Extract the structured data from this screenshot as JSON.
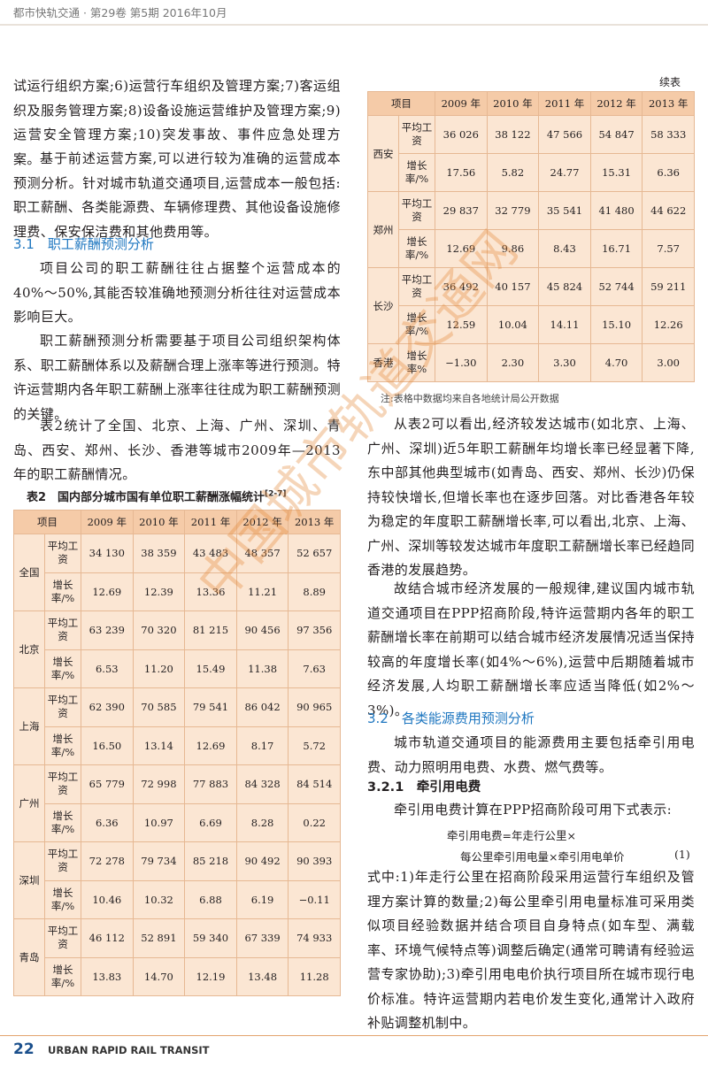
{
  "header": {
    "journal": "都市快轨交通 · 第29卷 第5期 2016年10月"
  },
  "left": {
    "p1": "试运行组织方案;6)运营行车组织及管理方案;7)客运组织及服务管理方案;8)设备设施运营维护及管理方案;9)运营安全管理方案;10)突发事故、事件应急处理方案。",
    "p2": "基于前述运营方案,可以进行较为准确的运营成本预测分析。针对城市轨道交通项目,运营成本一般包括:职工薪酬、各类能源费、车辆修理费、其他设备设施修理费、保安保洁费和其他费用等。",
    "h31": "3.1　职工薪酬预测分析",
    "p3": "项目公司的职工薪酬往往占据整个运营成本的40%～50%,其能否较准确地预测分析往往对运营成本影响巨大。",
    "p4": "职工薪酬预测分析需要基于项目公司组织架构体系、职工薪酬体系以及薪酬合理上涨率等进行预测。特许运营期内各年职工薪酬上涨率往往成为职工薪酬预测的关键。",
    "p5": "表2统计了全国、北京、上海、广州、深圳、青岛、西安、郑州、长沙、香港等城市2009年—2013年的职工薪酬情况。"
  },
  "table2": {
    "title": "表2　国内部分城市国有单位职工薪酬涨幅统计",
    "ref": "[2-7]",
    "columns": [
      "项目",
      "2009 年",
      "2010 年",
      "2011 年",
      "2012 年",
      "2013 年"
    ],
    "groups": [
      {
        "city": "全国",
        "rows": [
          {
            "item": "平均工资",
            "values": [
              "34 130",
              "38 359",
              "43 483",
              "48 357",
              "52 657"
            ]
          },
          {
            "item": "增长率/%",
            "values": [
              "12.69",
              "12.39",
              "13.36",
              "11.21",
              "8.89"
            ]
          }
        ]
      },
      {
        "city": "北京",
        "rows": [
          {
            "item": "平均工资",
            "values": [
              "63 239",
              "70 320",
              "81 215",
              "90 456",
              "97 356"
            ]
          },
          {
            "item": "增长率/%",
            "values": [
              "6.53",
              "11.20",
              "15.49",
              "11.38",
              "7.63"
            ]
          }
        ]
      },
      {
        "city": "上海",
        "rows": [
          {
            "item": "平均工资",
            "values": [
              "62 390",
              "70 585",
              "79 541",
              "86 042",
              "90 965"
            ]
          },
          {
            "item": "增长率/%",
            "values": [
              "16.50",
              "13.14",
              "12.69",
              "8.17",
              "5.72"
            ]
          }
        ]
      },
      {
        "city": "广州",
        "rows": [
          {
            "item": "平均工资",
            "values": [
              "65 779",
              "72 998",
              "77 883",
              "84 328",
              "84 514"
            ]
          },
          {
            "item": "增长率/%",
            "values": [
              "6.36",
              "10.97",
              "6.69",
              "8.28",
              "0.22"
            ]
          }
        ]
      },
      {
        "city": "深圳",
        "rows": [
          {
            "item": "平均工资",
            "values": [
              "72 278",
              "79 734",
              "85 218",
              "90 492",
              "90 393"
            ]
          },
          {
            "item": "增长率/%",
            "values": [
              "10.46",
              "10.32",
              "6.88",
              "6.19",
              "−0.11"
            ]
          }
        ]
      },
      {
        "city": "青岛",
        "rows": [
          {
            "item": "平均工资",
            "values": [
              "46 112",
              "52 891",
              "59 340",
              "67 339",
              "74 933"
            ]
          },
          {
            "item": "增长率/%",
            "values": [
              "13.83",
              "14.70",
              "12.19",
              "13.48",
              "11.28"
            ]
          }
        ]
      }
    ]
  },
  "table2_cont": {
    "label": "续表",
    "columns": [
      "项目",
      "2009 年",
      "2010 年",
      "2011 年",
      "2012 年",
      "2013 年"
    ],
    "groups": [
      {
        "city": "西安",
        "rows": [
          {
            "item": "平均工资",
            "values": [
              "36 026",
              "38 122",
              "47 566",
              "54 847",
              "58 333"
            ]
          },
          {
            "item": "增长率/%",
            "values": [
              "17.56",
              "5.82",
              "24.77",
              "15.31",
              "6.36"
            ]
          }
        ]
      },
      {
        "city": "郑州",
        "rows": [
          {
            "item": "平均工资",
            "values": [
              "29 837",
              "32 779",
              "35 541",
              "41 480",
              "44 622"
            ]
          },
          {
            "item": "增长率/%",
            "values": [
              "12.69",
              "9.86",
              "8.43",
              "16.71",
              "7.57"
            ]
          }
        ]
      },
      {
        "city": "长沙",
        "rows": [
          {
            "item": "平均工资",
            "values": [
              "36 492",
              "40 157",
              "45 824",
              "52 744",
              "59 211"
            ]
          },
          {
            "item": "增长率/%",
            "values": [
              "12.59",
              "10.04",
              "14.11",
              "15.10",
              "12.26"
            ]
          }
        ]
      },
      {
        "city": "香港",
        "rows": [
          {
            "item": "增长率%",
            "values": [
              "−1.30",
              "2.30",
              "3.30",
              "4.70",
              "3.00"
            ]
          }
        ]
      }
    ],
    "note": "注:表格中数据均来自各地统计局公开数据"
  },
  "right": {
    "p1": "从表2可以看出,经济较发达城市(如北京、上海、广州、深圳)近5年职工薪酬年均增长率已经显著下降,东中部其他典型城市(如青岛、西安、郑州、长沙)仍保持较快增长,但增长率也在逐步回落。对比香港各年较为稳定的年度职工薪酬增长率,可以看出,北京、上海、广州、深圳等较发达城市年度职工薪酬增长率已经趋同香港的发展趋势。",
    "p2": "故结合城市经济发展的一般规律,建议国内城市轨道交通项目在PPP招商阶段,特许运营期内各年的职工薪酬增长率在前期可以结合城市经济发展情况适当保持较高的年度增长率(如4%～6%),运营中后期随着城市经济发展,人均职工薪酬增长率应适当降低(如2%～3%)。",
    "h32": "3.2　各类能源费用预测分析",
    "p3": "城市轨道交通项目的能源费用主要包括牵引用电费、动力照明用电费、水费、燃气费等。",
    "h321": "3.2.1　牵引用电费",
    "p4": "牵引用电费计算在PPP招商阶段可用下式表示:",
    "formula1": "牵引用电费=年走行公里×",
    "formula2": "每公里牵引用电量×牵引用电单价",
    "formula_no": "(1)",
    "p5": "式中:1)年走行公里在招商阶段采用运营行车组织及管理方案计算的数量;2)每公里牵引用电量标准可采用类似项目经验数据并结合项目自身特点(如车型、满载率、环境气候特点等)调整后确定(通常可聘请有经验运营专家协助);3)牵引用电电价执行项目所在城市现行电价标准。特许运营期内若电价发生变化,通常计入政府补贴调整机制中。"
  },
  "footer": {
    "page": "22",
    "journal_en": "URBAN RAPID RAIL TRANSIT"
  },
  "watermark": "中国城市轨道交通网"
}
